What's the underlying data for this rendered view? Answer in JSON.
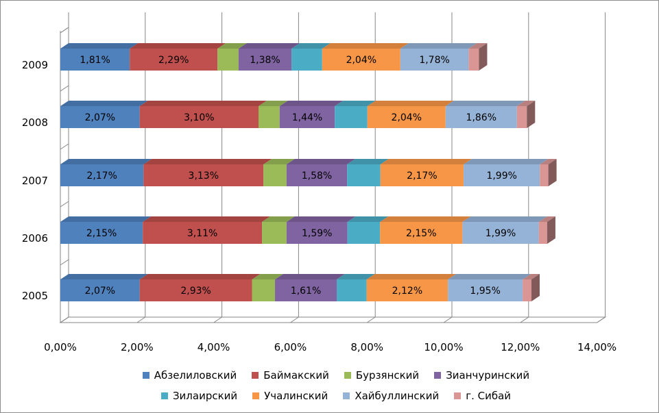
{
  "chart_data": {
    "type": "bar",
    "orientation": "horizontal",
    "stacked": true,
    "three_d": true,
    "categories": [
      "2005",
      "2006",
      "2007",
      "2008",
      "2009"
    ],
    "series": [
      {
        "name": "Абзелиловский",
        "color": "#4f81bd",
        "values": [
          2.07,
          2.15,
          2.17,
          2.07,
          1.81
        ],
        "labels": [
          "2,07%",
          "2,15%",
          "2,17%",
          "2,07%",
          "1,81%"
        ]
      },
      {
        "name": "Баймакский",
        "color": "#c0504d",
        "values": [
          2.93,
          3.11,
          3.13,
          3.1,
          2.29
        ],
        "labels": [
          "2,93%",
          "3,11%",
          "3,13%",
          "3,10%",
          "2,29%"
        ]
      },
      {
        "name": "Бурзянский",
        "color": "#9bbb59",
        "values": [
          0.6,
          0.64,
          0.6,
          0.55,
          0.55
        ],
        "labels": [
          "",
          "",
          "",
          "",
          ""
        ]
      },
      {
        "name": "Зианчуринский",
        "color": "#8064a2",
        "values": [
          1.61,
          1.59,
          1.58,
          1.44,
          1.38
        ],
        "labels": [
          "1,61%",
          "1,59%",
          "1,58%",
          "1,44%",
          "1,38%"
        ]
      },
      {
        "name": "Зилаирский",
        "color": "#4bacc6",
        "values": [
          0.78,
          0.85,
          0.87,
          0.85,
          0.8
        ],
        "labels": [
          "",
          "",
          "",
          "",
          ""
        ]
      },
      {
        "name": "Учалинский",
        "color": "#f79646",
        "values": [
          2.12,
          2.15,
          2.17,
          2.04,
          2.04
        ],
        "labels": [
          "2,12%",
          "2,15%",
          "2,17%",
          "2,04%",
          "2,04%"
        ]
      },
      {
        "name": "Хайбуллинский",
        "color": "#95b3d7",
        "values": [
          1.95,
          1.99,
          1.99,
          1.86,
          1.78
        ],
        "labels": [
          "1,95%",
          "1,99%",
          "1,99%",
          "1,86%",
          "1,78%"
        ]
      },
      {
        "name": "г. Сибай",
        "color": "#d99694",
        "values": [
          0.23,
          0.22,
          0.22,
          0.26,
          0.27
        ],
        "labels": [
          "",
          "",
          "",
          "",
          ""
        ]
      }
    ],
    "xlim": [
      0,
      14
    ],
    "x_ticks": [
      "0,00%",
      "2,00%",
      "4,00%",
      "6,00%",
      "8,00%",
      "10,00%",
      "12,00%",
      "14,00%"
    ],
    "grid": true,
    "legend_position": "bottom"
  }
}
